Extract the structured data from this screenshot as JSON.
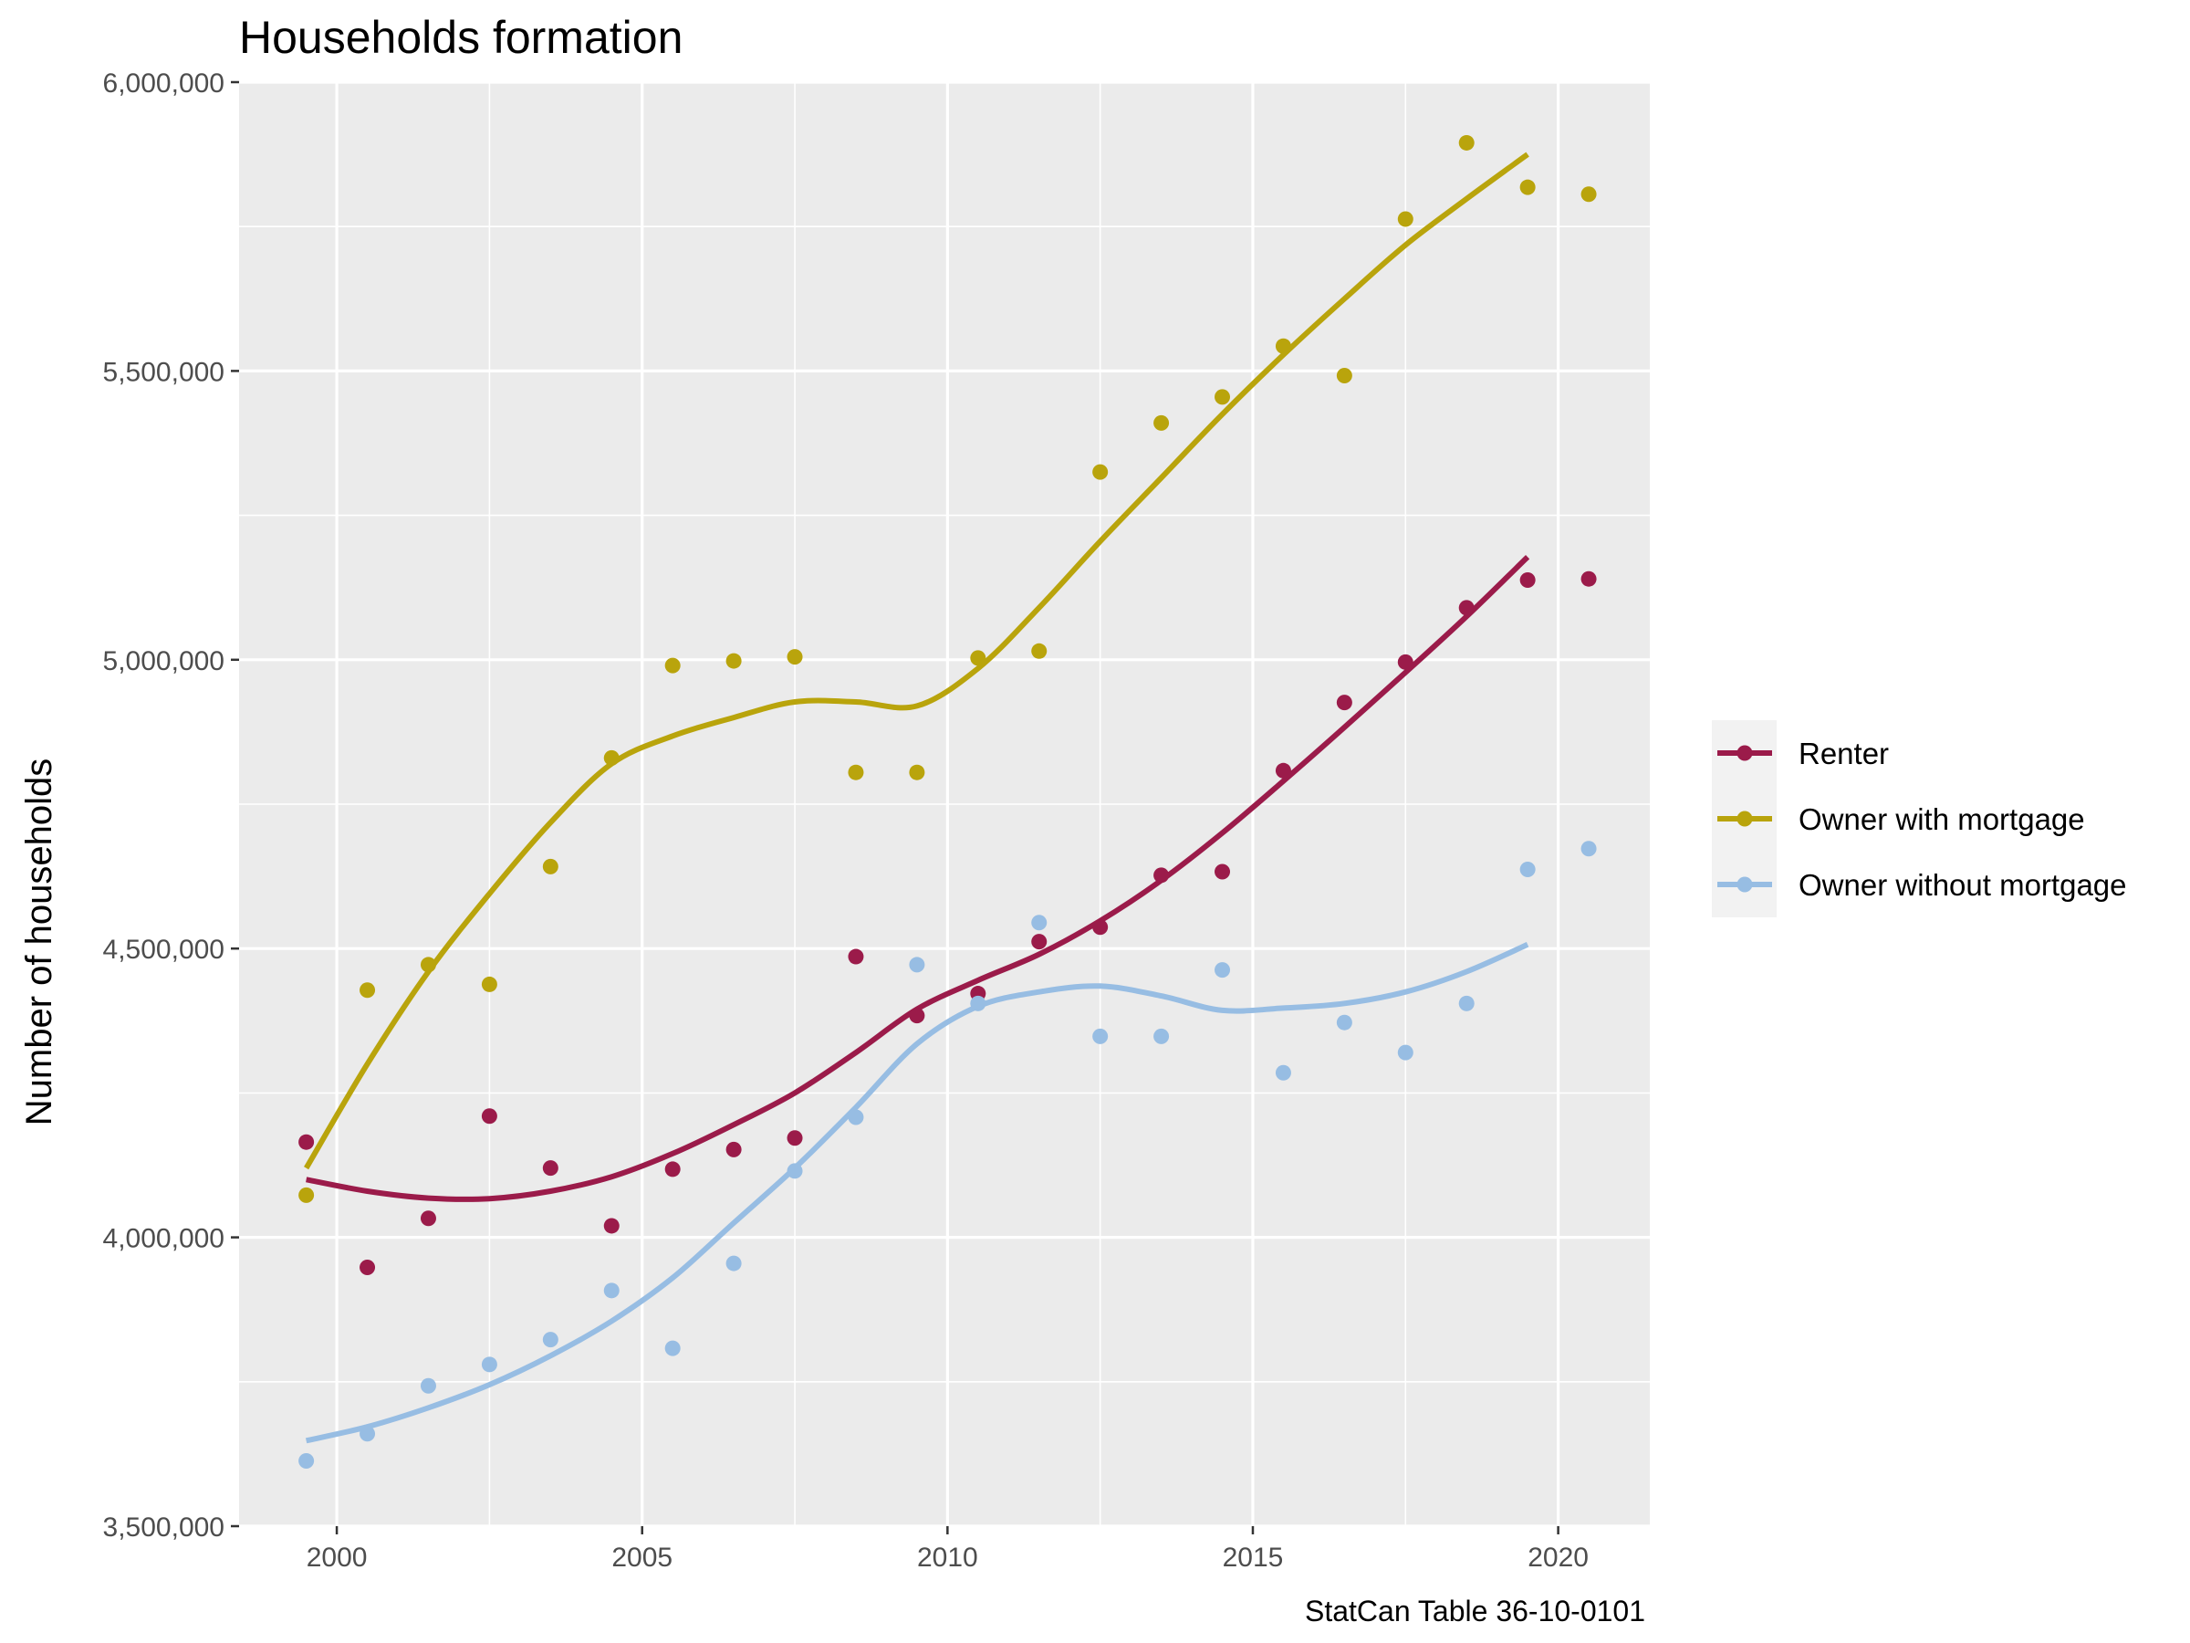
{
  "chart_data": {
    "type": "scatter",
    "title": "Households formation",
    "xlabel": "",
    "ylabel": "Number of households",
    "caption": "StatCan Table 36-10-0101",
    "xlim": [
      1998.4,
      2021.5
    ],
    "ylim": [
      3500000,
      6000000
    ],
    "x_ticks": [
      2000,
      2005,
      2010,
      2015,
      2020
    ],
    "x_tick_labels": [
      "2000",
      "2005",
      "2010",
      "2015",
      "2020"
    ],
    "y_ticks": [
      3500000,
      4000000,
      4500000,
      5000000,
      5500000,
      6000000
    ],
    "y_tick_labels": [
      "3,500,000",
      "4,000,000",
      "4,500,000",
      "5,000,000",
      "5,500,000",
      "6,000,000"
    ],
    "grid": true,
    "legend_position": "right",
    "series": [
      {
        "name": "Renter",
        "color": "#9b1b4a",
        "points": [
          [
            1999.5,
            4165000
          ],
          [
            2000.5,
            3948000
          ],
          [
            2001.5,
            4033000
          ],
          [
            2002.5,
            4210000
          ],
          [
            2003.5,
            4120000
          ],
          [
            2004.5,
            4020000
          ],
          [
            2005.5,
            4118000
          ],
          [
            2006.5,
            4152000
          ],
          [
            2007.5,
            4172000
          ],
          [
            2008.5,
            4486000
          ],
          [
            2009.5,
            4384000
          ],
          [
            2010.5,
            4422000
          ],
          [
            2011.5,
            4512000
          ],
          [
            2012.5,
            4537000
          ],
          [
            2013.5,
            4627000
          ],
          [
            2014.5,
            4633000
          ],
          [
            2015.5,
            4808000
          ],
          [
            2016.5,
            4926000
          ],
          [
            2017.5,
            4996000
          ],
          [
            2018.5,
            5090000
          ],
          [
            2019.5,
            5138000
          ],
          [
            2020.5,
            5140000
          ]
        ],
        "smooth": [
          [
            1999.5,
            4100000
          ],
          [
            2000.5,
            4080000
          ],
          [
            2001.5,
            4068000
          ],
          [
            2002.5,
            4067000
          ],
          [
            2003.5,
            4080000
          ],
          [
            2004.5,
            4105000
          ],
          [
            2005.5,
            4145000
          ],
          [
            2006.5,
            4195000
          ],
          [
            2007.5,
            4250000
          ],
          [
            2008.5,
            4320000
          ],
          [
            2009.5,
            4395000
          ],
          [
            2010.5,
            4445000
          ],
          [
            2011.5,
            4490000
          ],
          [
            2012.5,
            4548000
          ],
          [
            2013.5,
            4618000
          ],
          [
            2014.5,
            4700000
          ],
          [
            2015.5,
            4790000
          ],
          [
            2016.5,
            4883000
          ],
          [
            2017.5,
            4978000
          ],
          [
            2018.5,
            5075000
          ],
          [
            2019.5,
            5178000
          ]
        ]
      },
      {
        "name": "Owner with mortgage",
        "color": "#b9a40c",
        "points": [
          [
            1999.5,
            4073000
          ],
          [
            2000.5,
            4428000
          ],
          [
            2001.5,
            4472000
          ],
          [
            2002.5,
            4438000
          ],
          [
            2003.5,
            4642000
          ],
          [
            2004.5,
            4830000
          ],
          [
            2005.5,
            4990000
          ],
          [
            2006.5,
            4998000
          ],
          [
            2007.5,
            5005000
          ],
          [
            2008.5,
            4805000
          ],
          [
            2009.5,
            4805000
          ],
          [
            2010.5,
            5003000
          ],
          [
            2011.5,
            5015000
          ],
          [
            2012.5,
            5325000
          ],
          [
            2013.5,
            5410000
          ],
          [
            2014.5,
            5455000
          ],
          [
            2015.5,
            5543000
          ],
          [
            2016.5,
            5492000
          ],
          [
            2017.5,
            5763000
          ],
          [
            2018.5,
            5895000
          ],
          [
            2019.5,
            5818000
          ],
          [
            2020.5,
            5806000
          ]
        ],
        "smooth": [
          [
            1999.5,
            4120000
          ],
          [
            2000.5,
            4300000
          ],
          [
            2001.5,
            4460000
          ],
          [
            2002.5,
            4595000
          ],
          [
            2003.5,
            4718000
          ],
          [
            2004.5,
            4820000
          ],
          [
            2005.5,
            4868000
          ],
          [
            2006.5,
            4900000
          ],
          [
            2007.5,
            4927000
          ],
          [
            2008.5,
            4927000
          ],
          [
            2009.5,
            4920000
          ],
          [
            2010.5,
            4985000
          ],
          [
            2011.5,
            5090000
          ],
          [
            2012.5,
            5205000
          ],
          [
            2013.5,
            5315000
          ],
          [
            2014.5,
            5425000
          ],
          [
            2015.5,
            5528000
          ],
          [
            2016.5,
            5625000
          ],
          [
            2017.5,
            5718000
          ],
          [
            2018.5,
            5798000
          ],
          [
            2019.5,
            5875000
          ]
        ]
      },
      {
        "name": "Owner without mortgage",
        "color": "#97bde3",
        "points": [
          [
            1999.5,
            3613000
          ],
          [
            2000.5,
            3660000
          ],
          [
            2001.5,
            3743000
          ],
          [
            2002.5,
            3780000
          ],
          [
            2003.5,
            3823000
          ],
          [
            2004.5,
            3908000
          ],
          [
            2005.5,
            3808000
          ],
          [
            2006.5,
            3955000
          ],
          [
            2007.5,
            4115000
          ],
          [
            2008.5,
            4208000
          ],
          [
            2009.5,
            4472000
          ],
          [
            2010.5,
            4405000
          ],
          [
            2011.5,
            4545000
          ],
          [
            2012.5,
            4348000
          ],
          [
            2013.5,
            4348000
          ],
          [
            2014.5,
            4463000
          ],
          [
            2015.5,
            4285000
          ],
          [
            2016.5,
            4372000
          ],
          [
            2017.5,
            4320000
          ],
          [
            2018.5,
            4405000
          ],
          [
            2019.5,
            4637000
          ],
          [
            2020.5,
            4673000
          ]
        ],
        "smooth": [
          [
            1999.5,
            3648000
          ],
          [
            2000.5,
            3672000
          ],
          [
            2001.5,
            3705000
          ],
          [
            2002.5,
            3745000
          ],
          [
            2003.5,
            3795000
          ],
          [
            2004.5,
            3855000
          ],
          [
            2005.5,
            3930000
          ],
          [
            2006.5,
            4025000
          ],
          [
            2007.5,
            4120000
          ],
          [
            2008.5,
            4225000
          ],
          [
            2009.5,
            4335000
          ],
          [
            2010.5,
            4400000
          ],
          [
            2011.5,
            4425000
          ],
          [
            2012.5,
            4435000
          ],
          [
            2013.5,
            4418000
          ],
          [
            2014.5,
            4393000
          ],
          [
            2015.5,
            4397000
          ],
          [
            2016.5,
            4405000
          ],
          [
            2017.5,
            4425000
          ],
          [
            2018.5,
            4460000
          ],
          [
            2019.5,
            4507000
          ]
        ]
      }
    ]
  }
}
